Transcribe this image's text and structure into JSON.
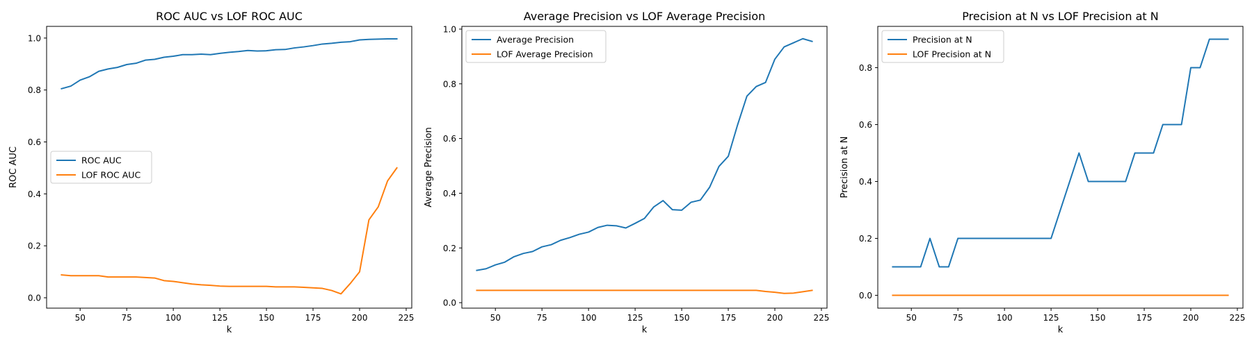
{
  "chart_data": [
    {
      "type": "line",
      "title": "ROC AUC vs LOF ROC AUC",
      "xlabel": "k",
      "ylabel": "ROC AUC",
      "xlim": [
        32,
        228
      ],
      "ylim": [
        -0.04,
        1.045
      ],
      "xticks": [
        50,
        75,
        100,
        125,
        150,
        175,
        200,
        225
      ],
      "yticks": [
        0.0,
        0.2,
        0.4,
        0.6,
        0.8,
        1.0
      ],
      "legend_position": "center-left",
      "grid": false,
      "x": [
        40,
        45,
        50,
        55,
        60,
        65,
        70,
        75,
        80,
        85,
        90,
        95,
        100,
        105,
        110,
        115,
        120,
        125,
        130,
        135,
        140,
        145,
        150,
        155,
        160,
        165,
        170,
        175,
        180,
        185,
        190,
        195,
        200,
        205,
        210,
        215,
        220
      ],
      "series": [
        {
          "name": "ROC AUC",
          "color": "#1f77b4",
          "values": [
            0.805,
            0.815,
            0.838,
            0.851,
            0.872,
            0.881,
            0.887,
            0.898,
            0.903,
            0.915,
            0.918,
            0.926,
            0.93,
            0.936,
            0.936,
            0.938,
            0.936,
            0.941,
            0.945,
            0.948,
            0.952,
            0.95,
            0.951,
            0.955,
            0.956,
            0.962,
            0.966,
            0.971,
            0.977,
            0.98,
            0.984,
            0.986,
            0.993,
            0.995,
            0.996,
            0.997,
            0.997
          ]
        },
        {
          "name": "LOF ROC AUC",
          "color": "#ff7f0e",
          "values": [
            0.088,
            0.085,
            0.085,
            0.085,
            0.085,
            0.08,
            0.08,
            0.08,
            0.08,
            0.078,
            0.076,
            0.066,
            0.063,
            0.058,
            0.053,
            0.05,
            0.048,
            0.045,
            0.044,
            0.044,
            0.044,
            0.044,
            0.044,
            0.042,
            0.042,
            0.042,
            0.04,
            0.038,
            0.036,
            0.028,
            0.015,
            0.055,
            0.1,
            0.3,
            0.35,
            0.45,
            0.5
          ]
        }
      ]
    },
    {
      "type": "line",
      "title": "Average Precision vs LOF Average Precision",
      "xlabel": "k",
      "ylabel": "Average Precision",
      "xlim": [
        32,
        228
      ],
      "ylim": [
        -0.02,
        1.01
      ],
      "xticks": [
        50,
        75,
        100,
        125,
        150,
        175,
        200,
        225
      ],
      "yticks": [
        0.0,
        0.2,
        0.4,
        0.6,
        0.8,
        1.0
      ],
      "legend_position": "top-left",
      "grid": false,
      "x": [
        40,
        45,
        50,
        55,
        60,
        65,
        70,
        75,
        80,
        85,
        90,
        95,
        100,
        105,
        110,
        115,
        120,
        125,
        130,
        135,
        140,
        145,
        150,
        155,
        160,
        165,
        170,
        175,
        180,
        185,
        190,
        195,
        200,
        205,
        210,
        215,
        220
      ],
      "series": [
        {
          "name": "Average Precision",
          "color": "#1f77b4",
          "values": [
            0.118,
            0.124,
            0.138,
            0.148,
            0.168,
            0.18,
            0.187,
            0.204,
            0.212,
            0.228,
            0.238,
            0.25,
            0.258,
            0.275,
            0.283,
            0.281,
            0.273,
            0.29,
            0.308,
            0.35,
            0.373,
            0.34,
            0.338,
            0.367,
            0.375,
            0.422,
            0.498,
            0.535,
            0.65,
            0.755,
            0.79,
            0.805,
            0.89,
            0.935,
            0.95,
            0.965,
            0.955
          ]
        },
        {
          "name": "LOF Average Precision",
          "color": "#ff7f0e",
          "values": [
            0.045,
            0.045,
            0.045,
            0.045,
            0.045,
            0.045,
            0.045,
            0.045,
            0.045,
            0.045,
            0.045,
            0.045,
            0.045,
            0.045,
            0.045,
            0.045,
            0.045,
            0.045,
            0.045,
            0.045,
            0.045,
            0.045,
            0.045,
            0.045,
            0.045,
            0.045,
            0.045,
            0.045,
            0.045,
            0.045,
            0.045,
            0.041,
            0.038,
            0.034,
            0.035,
            0.04,
            0.045
          ]
        }
      ]
    },
    {
      "type": "line",
      "title": "Precision at N vs LOF Precision at N",
      "xlabel": "k",
      "ylabel": "Precision at N",
      "xlim": [
        32,
        228
      ],
      "ylim": [
        -0.045,
        0.945
      ],
      "xticks": [
        50,
        75,
        100,
        125,
        150,
        175,
        200,
        225
      ],
      "yticks": [
        0.0,
        0.2,
        0.4,
        0.6,
        0.8
      ],
      "legend_position": "top-left",
      "grid": false,
      "x": [
        40,
        45,
        50,
        55,
        60,
        65,
        70,
        75,
        80,
        85,
        90,
        95,
        100,
        105,
        110,
        115,
        120,
        125,
        130,
        135,
        140,
        145,
        150,
        155,
        160,
        165,
        170,
        175,
        180,
        185,
        190,
        195,
        200,
        205,
        210,
        215,
        220
      ],
      "series": [
        {
          "name": "Precision at N",
          "color": "#1f77b4",
          "values": [
            0.1,
            0.1,
            0.1,
            0.1,
            0.2,
            0.1,
            0.1,
            0.2,
            0.2,
            0.2,
            0.2,
            0.2,
            0.2,
            0.2,
            0.2,
            0.2,
            0.2,
            0.2,
            0.3,
            0.4,
            0.5,
            0.4,
            0.4,
            0.4,
            0.4,
            0.4,
            0.5,
            0.5,
            0.5,
            0.6,
            0.6,
            0.6,
            0.8,
            0.8,
            0.9,
            0.9,
            0.9
          ]
        },
        {
          "name": "LOF Precision at N",
          "color": "#ff7f0e",
          "values": [
            0,
            0,
            0,
            0,
            0,
            0,
            0,
            0,
            0,
            0,
            0,
            0,
            0,
            0,
            0,
            0,
            0,
            0,
            0,
            0,
            0,
            0,
            0,
            0,
            0,
            0,
            0,
            0,
            0,
            0,
            0,
            0,
            0,
            0,
            0,
            0,
            0
          ]
        }
      ]
    }
  ]
}
